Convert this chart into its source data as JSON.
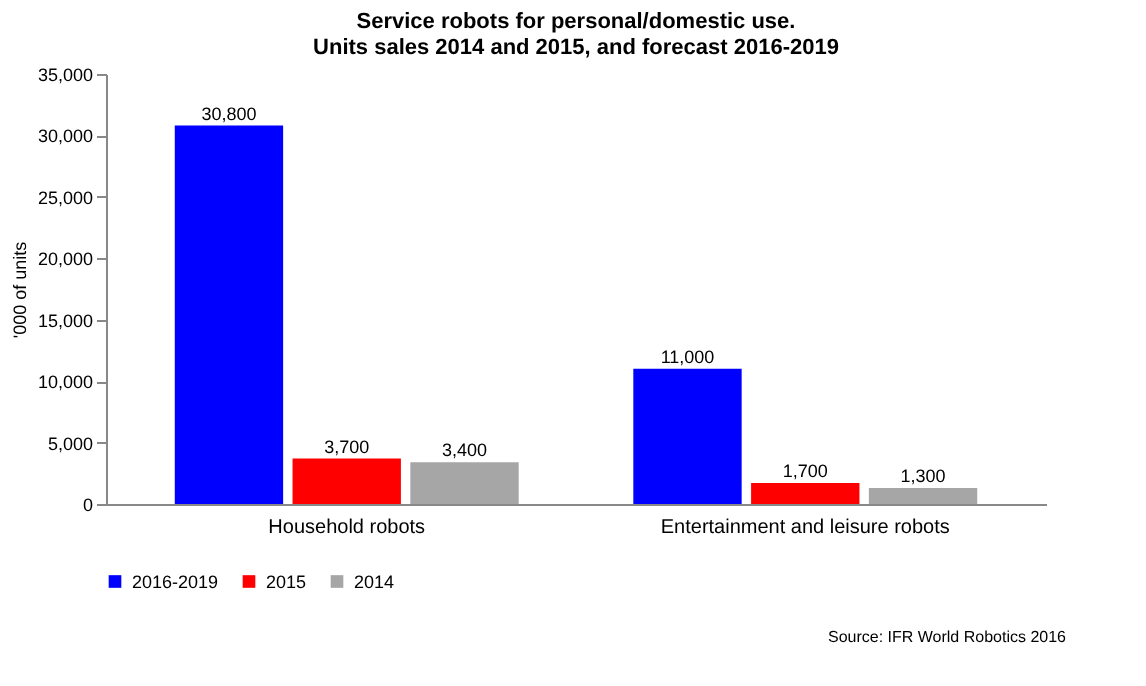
{
  "chart_data": {
    "type": "bar",
    "title": "Service robots for personal/domestic use.\nUnits sales 2014 and 2015, and forecast 2016-2019",
    "ylabel": "'000 of units",
    "categories": [
      "Household robots",
      "Entertainment and leisure robots"
    ],
    "series": [
      {
        "name": "2016-2019",
        "color": "#0000ff",
        "values": [
          30800,
          11000
        ],
        "value_labels": [
          "30,800",
          "11,000"
        ]
      },
      {
        "name": "2015",
        "color": "#ff0000",
        "values": [
          3700,
          1700
        ],
        "value_labels": [
          "3,700",
          "1,700"
        ]
      },
      {
        "name": "2014",
        "color": "#a6a6a6",
        "values": [
          3400,
          1300
        ],
        "value_labels": [
          "3,400",
          "1,300"
        ]
      }
    ],
    "ylim": [
      0,
      35000
    ],
    "yticks": [
      {
        "value": 0,
        "label": "0"
      },
      {
        "value": 5000,
        "label": "5,000"
      },
      {
        "value": 10000,
        "label": "10,000"
      },
      {
        "value": 15000,
        "label": "15,000"
      },
      {
        "value": 20000,
        "label": "20,000"
      },
      {
        "value": 25000,
        "label": "25,000"
      },
      {
        "value": 30000,
        "label": "30,000"
      },
      {
        "value": 35000,
        "label": "35,000"
      }
    ],
    "grid": false,
    "legend": "bottom",
    "annotations": [
      "Source: IFR World Robotics 2016"
    ]
  }
}
